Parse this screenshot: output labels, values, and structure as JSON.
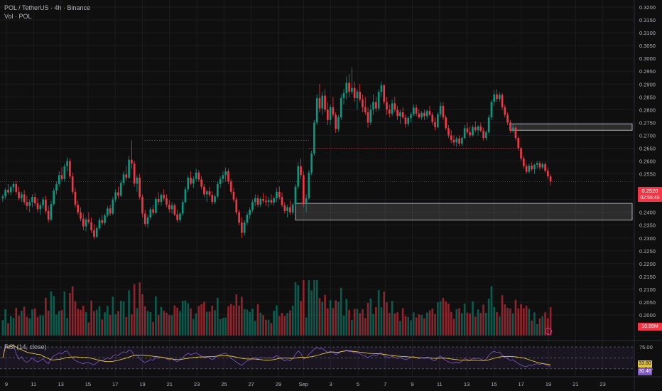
{
  "header": {
    "title": "POL / TetherUS · 4h · Binance",
    "volume_label": "Vol · POL"
  },
  "rsi": {
    "label": "RSI (14, close)",
    "value": "33.80",
    "ma_value": "30.46",
    "upper": "75.00",
    "lower": "25.00",
    "line_color": "#7e57c2",
    "ma_color": "#e4c33b"
  },
  "price_axis": {
    "ticks": [
      "0.3200",
      "0.3150",
      "0.3100",
      "0.3050",
      "0.3000",
      "0.2950",
      "0.2900",
      "0.2850",
      "0.2800",
      "0.2750",
      "0.2700",
      "0.2650",
      "0.2600",
      "0.2550",
      "0.2450",
      "0.2400",
      "0.2350",
      "0.2300",
      "0.2250",
      "0.2200",
      "0.2150",
      "0.2100",
      "0.2050",
      "0.2000"
    ]
  },
  "last_price": {
    "value": "0.2520",
    "countdown": "02:56:48",
    "color": "#f23645"
  },
  "volume_tag": {
    "value": "10.99M",
    "color": "#f23645"
  },
  "time_axis": {
    "ticks": [
      "9",
      "11",
      "13",
      "15",
      "17",
      "19",
      "21",
      "23",
      "25",
      "27",
      "29",
      "Sep",
      "3",
      "5",
      "7",
      "9",
      "11",
      "13",
      "15",
      "17",
      "19",
      "21",
      "23"
    ]
  },
  "colors": {
    "up": "#089981",
    "down": "#f23645",
    "background": "#0f0f0f"
  },
  "chart_data": {
    "type": "candlestick",
    "symbol": "POL / TetherUS",
    "timeframe": "4h",
    "ylim": [
      0.2,
      0.32
    ],
    "x_range": [
      "Aug 9",
      "Sep 23"
    ],
    "candles": [
      [
        0.2455,
        0.247,
        0.244,
        0.2462
      ],
      [
        0.2462,
        0.2495,
        0.2452,
        0.2488
      ],
      [
        0.2488,
        0.251,
        0.247,
        0.2478
      ],
      [
        0.2478,
        0.2505,
        0.2466,
        0.2498
      ],
      [
        0.2498,
        0.252,
        0.248,
        0.251
      ],
      [
        0.251,
        0.2522,
        0.247,
        0.248
      ],
      [
        0.248,
        0.25,
        0.2446,
        0.2455
      ],
      [
        0.2455,
        0.248,
        0.244,
        0.247
      ],
      [
        0.247,
        0.2488,
        0.243,
        0.244
      ],
      [
        0.244,
        0.2465,
        0.241,
        0.2425
      ],
      [
        0.2425,
        0.245,
        0.24,
        0.244
      ],
      [
        0.244,
        0.247,
        0.242,
        0.246
      ],
      [
        0.246,
        0.2475,
        0.2425,
        0.2435
      ],
      [
        0.2435,
        0.2455,
        0.24,
        0.2412
      ],
      [
        0.2412,
        0.244,
        0.239,
        0.2428
      ],
      [
        0.2428,
        0.246,
        0.2415,
        0.245
      ],
      [
        0.245,
        0.2465,
        0.2395,
        0.2405
      ],
      [
        0.2405,
        0.2425,
        0.236,
        0.2372
      ],
      [
        0.2372,
        0.2445,
        0.2365,
        0.2432
      ],
      [
        0.2432,
        0.2495,
        0.2425,
        0.2485
      ],
      [
        0.2485,
        0.252,
        0.247,
        0.251
      ],
      [
        0.251,
        0.256,
        0.25,
        0.2545
      ],
      [
        0.2545,
        0.2575,
        0.252,
        0.253
      ],
      [
        0.253,
        0.259,
        0.252,
        0.258
      ],
      [
        0.258,
        0.2615,
        0.256,
        0.26
      ],
      [
        0.26,
        0.261,
        0.253,
        0.254
      ],
      [
        0.254,
        0.2555,
        0.247,
        0.248
      ],
      [
        0.248,
        0.2495,
        0.242,
        0.243
      ],
      [
        0.243,
        0.2445,
        0.239,
        0.24
      ],
      [
        0.24,
        0.242,
        0.2365,
        0.2375
      ],
      [
        0.2375,
        0.2395,
        0.233,
        0.2345
      ],
      [
        0.2345,
        0.238,
        0.2325,
        0.2372
      ],
      [
        0.2372,
        0.24,
        0.2355,
        0.2362
      ],
      [
        0.2362,
        0.238,
        0.232,
        0.233
      ],
      [
        0.233,
        0.2355,
        0.2295,
        0.2305
      ],
      [
        0.2305,
        0.2345,
        0.23,
        0.2338
      ],
      [
        0.2338,
        0.238,
        0.233,
        0.237
      ],
      [
        0.237,
        0.239,
        0.235,
        0.2358
      ],
      [
        0.2358,
        0.2395,
        0.235,
        0.2388
      ],
      [
        0.2388,
        0.2425,
        0.238,
        0.2415
      ],
      [
        0.2415,
        0.243,
        0.2385,
        0.2395
      ],
      [
        0.2395,
        0.246,
        0.239,
        0.245
      ],
      [
        0.245,
        0.249,
        0.244,
        0.2478
      ],
      [
        0.2478,
        0.25,
        0.2455,
        0.2465
      ],
      [
        0.2465,
        0.2525,
        0.246,
        0.2515
      ],
      [
        0.2515,
        0.256,
        0.2505,
        0.2548
      ],
      [
        0.2548,
        0.258,
        0.2525,
        0.2535
      ],
      [
        0.2535,
        0.262,
        0.253,
        0.2605
      ],
      [
        0.2605,
        0.268,
        0.257,
        0.259
      ],
      [
        0.259,
        0.26,
        0.25,
        0.2512
      ],
      [
        0.2512,
        0.2545,
        0.248,
        0.2535
      ],
      [
        0.2535,
        0.255,
        0.245,
        0.246
      ],
      [
        0.246,
        0.247,
        0.238,
        0.2395
      ],
      [
        0.2395,
        0.241,
        0.2345,
        0.2355
      ],
      [
        0.2355,
        0.239,
        0.234,
        0.238
      ],
      [
        0.238,
        0.242,
        0.237,
        0.2412
      ],
      [
        0.2412,
        0.243,
        0.239,
        0.2398
      ],
      [
        0.2398,
        0.246,
        0.2392,
        0.2452
      ],
      [
        0.2452,
        0.2478,
        0.243,
        0.244
      ],
      [
        0.244,
        0.2475,
        0.2425,
        0.2468
      ],
      [
        0.2468,
        0.249,
        0.2445,
        0.2455
      ],
      [
        0.2455,
        0.247,
        0.242,
        0.243
      ],
      [
        0.243,
        0.2448,
        0.24,
        0.2412
      ],
      [
        0.2412,
        0.244,
        0.2395,
        0.2428
      ],
      [
        0.2428,
        0.2435,
        0.2385,
        0.2392
      ],
      [
        0.2392,
        0.241,
        0.236,
        0.237
      ],
      [
        0.237,
        0.24,
        0.236,
        0.2395
      ],
      [
        0.2395,
        0.245,
        0.2388,
        0.244
      ],
      [
        0.244,
        0.25,
        0.2435,
        0.249
      ],
      [
        0.249,
        0.2545,
        0.248,
        0.2535
      ],
      [
        0.2535,
        0.256,
        0.2505,
        0.2512
      ],
      [
        0.2512,
        0.254,
        0.2495,
        0.253
      ],
      [
        0.253,
        0.257,
        0.252,
        0.2555
      ],
      [
        0.2555,
        0.2565,
        0.252,
        0.2528
      ],
      [
        0.2528,
        0.254,
        0.249,
        0.25
      ],
      [
        0.25,
        0.251,
        0.246,
        0.247
      ],
      [
        0.247,
        0.2488,
        0.244,
        0.2482
      ],
      [
        0.2482,
        0.25,
        0.246,
        0.2468
      ],
      [
        0.2468,
        0.2482,
        0.243,
        0.244
      ],
      [
        0.244,
        0.247,
        0.2432,
        0.2462
      ],
      [
        0.2462,
        0.252,
        0.2455,
        0.251
      ],
      [
        0.251,
        0.254,
        0.2495,
        0.253
      ],
      [
        0.253,
        0.256,
        0.2515,
        0.2545
      ],
      [
        0.2545,
        0.2575,
        0.252,
        0.256
      ],
      [
        0.256,
        0.257,
        0.251,
        0.252
      ],
      [
        0.252,
        0.253,
        0.247,
        0.248
      ],
      [
        0.248,
        0.2495,
        0.244,
        0.245
      ],
      [
        0.245,
        0.246,
        0.239,
        0.24
      ],
      [
        0.24,
        0.241,
        0.235,
        0.236
      ],
      [
        0.236,
        0.238,
        0.23,
        0.232
      ],
      [
        0.232,
        0.237,
        0.231,
        0.236
      ],
      [
        0.236,
        0.24,
        0.235,
        0.239
      ],
      [
        0.239,
        0.242,
        0.2375,
        0.241
      ],
      [
        0.241,
        0.245,
        0.24,
        0.244
      ],
      [
        0.244,
        0.247,
        0.2425,
        0.2455
      ],
      [
        0.2455,
        0.2468,
        0.242,
        0.243
      ],
      [
        0.243,
        0.246,
        0.242,
        0.2452
      ],
      [
        0.2452,
        0.2475,
        0.2435,
        0.2445
      ],
      [
        0.2445,
        0.2465,
        0.2425,
        0.244
      ],
      [
        0.244,
        0.246,
        0.242,
        0.2448
      ],
      [
        0.2448,
        0.247,
        0.243,
        0.2438
      ],
      [
        0.2438,
        0.2462,
        0.2425,
        0.2455
      ],
      [
        0.2455,
        0.2495,
        0.244,
        0.248
      ],
      [
        0.248,
        0.25,
        0.245,
        0.246
      ],
      [
        0.246,
        0.2478,
        0.242,
        0.2428
      ],
      [
        0.2428,
        0.244,
        0.2395,
        0.2405
      ],
      [
        0.2405,
        0.243,
        0.238,
        0.242
      ],
      [
        0.242,
        0.2445,
        0.239,
        0.24
      ],
      [
        0.24,
        0.2438,
        0.2392,
        0.243
      ],
      [
        0.243,
        0.251,
        0.2425,
        0.25
      ],
      [
        0.25,
        0.2595,
        0.249,
        0.258
      ],
      [
        0.258,
        0.261,
        0.253,
        0.2545
      ],
      [
        0.2545,
        0.256,
        0.242,
        0.2432
      ],
      [
        0.2432,
        0.247,
        0.24,
        0.2455
      ],
      [
        0.2455,
        0.2565,
        0.245,
        0.2555
      ],
      [
        0.2555,
        0.264,
        0.2545,
        0.263
      ],
      [
        0.263,
        0.276,
        0.262,
        0.275
      ],
      [
        0.275,
        0.286,
        0.274,
        0.2845
      ],
      [
        0.2845,
        0.29,
        0.279,
        0.2805
      ],
      [
        0.2805,
        0.287,
        0.278,
        0.2855
      ],
      [
        0.2855,
        0.288,
        0.279,
        0.28
      ],
      [
        0.28,
        0.283,
        0.274,
        0.276
      ],
      [
        0.276,
        0.282,
        0.274,
        0.281
      ],
      [
        0.281,
        0.285,
        0.277,
        0.278
      ],
      [
        0.278,
        0.279,
        0.271,
        0.2725
      ],
      [
        0.2725,
        0.278,
        0.2715,
        0.277
      ],
      [
        0.277,
        0.286,
        0.276,
        0.2845
      ],
      [
        0.2845,
        0.288,
        0.282,
        0.2865
      ],
      [
        0.2865,
        0.293,
        0.284,
        0.2905
      ],
      [
        0.2905,
        0.294,
        0.285,
        0.287
      ],
      [
        0.287,
        0.2965,
        0.286,
        0.2885
      ],
      [
        0.2885,
        0.291,
        0.283,
        0.2845
      ],
      [
        0.2845,
        0.288,
        0.28,
        0.287
      ],
      [
        0.287,
        0.29,
        0.283,
        0.284
      ],
      [
        0.284,
        0.286,
        0.279,
        0.281
      ],
      [
        0.281,
        0.285,
        0.278,
        0.279
      ],
      [
        0.279,
        0.281,
        0.273,
        0.275
      ],
      [
        0.275,
        0.282,
        0.274,
        0.28
      ],
      [
        0.28,
        0.286,
        0.278,
        0.283
      ],
      [
        0.283,
        0.285,
        0.279,
        0.2805
      ],
      [
        0.2805,
        0.288,
        0.2795,
        0.287
      ],
      [
        0.287,
        0.291,
        0.285,
        0.2895
      ],
      [
        0.2895,
        0.29,
        0.282,
        0.283
      ],
      [
        0.283,
        0.285,
        0.278,
        0.28
      ],
      [
        0.28,
        0.282,
        0.277,
        0.2785
      ],
      [
        0.2785,
        0.284,
        0.2775,
        0.2825
      ],
      [
        0.2825,
        0.285,
        0.279,
        0.28
      ],
      [
        0.28,
        0.2815,
        0.276,
        0.2775
      ],
      [
        0.2775,
        0.28,
        0.2745,
        0.279
      ],
      [
        0.279,
        0.281,
        0.2765,
        0.277
      ],
      [
        0.277,
        0.278,
        0.273,
        0.2745
      ],
      [
        0.2745,
        0.2775,
        0.2735,
        0.2768
      ],
      [
        0.2768,
        0.279,
        0.275,
        0.2782
      ],
      [
        0.2782,
        0.282,
        0.2775,
        0.2808
      ],
      [
        0.2808,
        0.282,
        0.2775,
        0.2785
      ],
      [
        0.2785,
        0.28,
        0.2765,
        0.277
      ],
      [
        0.277,
        0.2795,
        0.276,
        0.2788
      ],
      [
        0.2788,
        0.28,
        0.276,
        0.2775
      ],
      [
        0.2775,
        0.28,
        0.2765,
        0.2795
      ],
      [
        0.2795,
        0.2815,
        0.2775,
        0.278
      ],
      [
        0.278,
        0.279,
        0.274,
        0.2752
      ],
      [
        0.2752,
        0.277,
        0.272,
        0.2732
      ],
      [
        0.2732,
        0.279,
        0.2728,
        0.2782
      ],
      [
        0.2782,
        0.283,
        0.277,
        0.2815
      ],
      [
        0.2815,
        0.283,
        0.276,
        0.277
      ],
      [
        0.277,
        0.278,
        0.272,
        0.2728
      ],
      [
        0.2728,
        0.274,
        0.269,
        0.27
      ],
      [
        0.27,
        0.272,
        0.267,
        0.2682
      ],
      [
        0.2682,
        0.27,
        0.266,
        0.2672
      ],
      [
        0.2672,
        0.2695,
        0.2655,
        0.2688
      ],
      [
        0.2688,
        0.27,
        0.266,
        0.2668
      ],
      [
        0.2668,
        0.2695,
        0.266,
        0.269
      ],
      [
        0.269,
        0.274,
        0.2685,
        0.2728
      ],
      [
        0.2728,
        0.275,
        0.2705,
        0.2712
      ],
      [
        0.2712,
        0.2735,
        0.269,
        0.27
      ],
      [
        0.27,
        0.274,
        0.2695,
        0.2732
      ],
      [
        0.2732,
        0.2755,
        0.2712,
        0.272
      ],
      [
        0.272,
        0.274,
        0.27,
        0.2735
      ],
      [
        0.2735,
        0.275,
        0.2712,
        0.2718
      ],
      [
        0.2718,
        0.273,
        0.268,
        0.269
      ],
      [
        0.269,
        0.272,
        0.268,
        0.2712
      ],
      [
        0.2712,
        0.278,
        0.2705,
        0.277
      ],
      [
        0.277,
        0.284,
        0.276,
        0.283
      ],
      [
        0.283,
        0.2875,
        0.2815,
        0.286
      ],
      [
        0.286,
        0.288,
        0.283,
        0.2842
      ],
      [
        0.2842,
        0.287,
        0.283,
        0.2858
      ],
      [
        0.2858,
        0.2865,
        0.28,
        0.281
      ],
      [
        0.281,
        0.282,
        0.277,
        0.278
      ],
      [
        0.278,
        0.279,
        0.274,
        0.275
      ],
      [
        0.275,
        0.276,
        0.271,
        0.272
      ],
      [
        0.272,
        0.2745,
        0.271,
        0.273
      ],
      [
        0.273,
        0.2735,
        0.268,
        0.269
      ],
      [
        0.269,
        0.2695,
        0.264,
        0.265
      ],
      [
        0.265,
        0.2655,
        0.26,
        0.261
      ],
      [
        0.261,
        0.262,
        0.257,
        0.258
      ],
      [
        0.258,
        0.259,
        0.255,
        0.2558
      ],
      [
        0.2558,
        0.259,
        0.2552,
        0.2582
      ],
      [
        0.2582,
        0.2595,
        0.256,
        0.2568
      ],
      [
        0.2568,
        0.259,
        0.255,
        0.2585
      ],
      [
        0.2585,
        0.26,
        0.257,
        0.2592
      ],
      [
        0.2592,
        0.26,
        0.2565,
        0.2575
      ],
      [
        0.2575,
        0.2595,
        0.2568,
        0.2588
      ],
      [
        0.2588,
        0.2595,
        0.2555,
        0.2562
      ],
      [
        0.2562,
        0.2575,
        0.253,
        0.254
      ],
      [
        0.254,
        0.2548,
        0.2505,
        0.252
      ]
    ],
    "annotations": [
      {
        "type": "demand_zone",
        "price_range": [
          0.237,
          0.2435
        ]
      },
      {
        "type": "supply_zone",
        "price_range": [
          0.272,
          0.2745
        ]
      },
      {
        "type": "dotted_level",
        "price": 0.268
      },
      {
        "type": "dotted_level",
        "price": 0.265
      }
    ],
    "rsi_levels": [
      25,
      50,
      75
    ]
  }
}
